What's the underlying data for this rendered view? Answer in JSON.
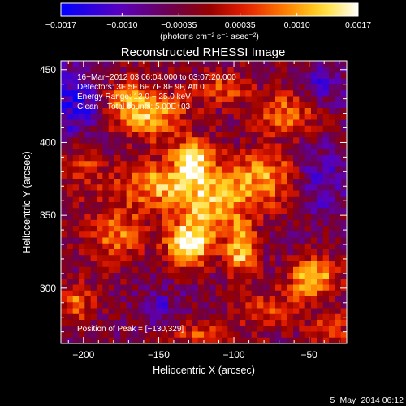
{
  "chart_data": {
    "type": "heatmap",
    "title": "Reconstructed RHESSI Image",
    "xlabel": "Heliocentric X (arcsec)",
    "ylabel": "Heliocentric Y (arcsec)",
    "xlim": [
      -215,
      -25
    ],
    "ylim": [
      262,
      456
    ],
    "x_ticks": [
      -200,
      -150,
      -100,
      -50
    ],
    "y_ticks": [
      300,
      350,
      400,
      450
    ],
    "x_tick_labels": [
      "−200",
      "−150",
      "−100",
      "−50"
    ],
    "y_tick_labels": [
      "300",
      "350",
      "400",
      "450"
    ],
    "grid": false,
    "colorbar": {
      "colormap": "thermal (blue-purple-red-orange-yellow-white)",
      "range": [
        -0.0017,
        0.0017
      ],
      "tick_values": [
        -0.0017,
        -0.001,
        -0.00035,
        0.00035,
        0.001,
        0.0017
      ],
      "tick_labels": [
        "−0.0017",
        "−0.0010",
        "−0.00035",
        "0.00035",
        "0.0010",
        "0.0017"
      ],
      "units": "(photons cm⁻² s⁻¹ asec⁻²)",
      "colors": [
        "#0000ff",
        "#6a00b0",
        "#8a0040",
        "#d00000",
        "#ff8000",
        "#ffe000",
        "#ffffff"
      ]
    },
    "info_lines": [
      "16−Mar−2012 03:06:04.000 to 03:07:20.000",
      "Detectors: 3F 5F 6F 7F 8F 9F, Att 0",
      "Energy Range: 12.0 − 25.0 keV",
      "Clean    Total counts: 5.00E+03"
    ],
    "peak_label": "Position of Peak = [−130,329]",
    "peak": {
      "x": -130,
      "y": 329
    },
    "background_level": -0.00035,
    "sources": [
      {
        "x": -130,
        "y": 330,
        "sx": 10,
        "sy": 10,
        "amp": 0.0021
      },
      {
        "x": -127,
        "y": 390,
        "sx": 10,
        "sy": 9,
        "amp": 0.0017
      },
      {
        "x": -95,
        "y": 325,
        "sx": 7,
        "sy": 12,
        "amp": 0.0016
      },
      {
        "x": -47,
        "y": 307,
        "sx": 11,
        "sy": 10,
        "amp": 0.0016
      },
      {
        "x": -147,
        "y": 371,
        "sx": 22,
        "sy": 10,
        "amp": 0.0014
      },
      {
        "x": -78,
        "y": 376,
        "sx": 20,
        "sy": 14,
        "amp": 0.0013
      },
      {
        "x": -178,
        "y": 338,
        "sx": 14,
        "sy": 14,
        "amp": 0.0011
      },
      {
        "x": -115,
        "y": 355,
        "sx": 18,
        "sy": 14,
        "amp": 0.0013
      },
      {
        "x": -172,
        "y": 428,
        "sx": 12,
        "sy": 12,
        "amp": 0.001
      },
      {
        "x": -153,
        "y": 418,
        "sx": 16,
        "sy": 12,
        "amp": 0.0012
      },
      {
        "x": -65,
        "y": 420,
        "sx": 14,
        "sy": 10,
        "amp": 0.0011
      },
      {
        "x": -205,
        "y": 290,
        "sx": 8,
        "sy": 10,
        "amp": 0.001
      },
      {
        "x": -122,
        "y": 268,
        "sx": 14,
        "sy": 6,
        "amp": 0.0009
      },
      {
        "x": -76,
        "y": 285,
        "sx": 14,
        "sy": 10,
        "amp": 0.0008
      },
      {
        "x": -108,
        "y": 437,
        "sx": 14,
        "sy": 9,
        "amp": 0.0008
      },
      {
        "x": -35,
        "y": 270,
        "sx": 10,
        "sy": 10,
        "amp": 0.0008
      },
      {
        "x": -200,
        "y": 385,
        "sx": 10,
        "sy": 14,
        "amp": 0.0007
      }
    ],
    "negative_regions": [
      {
        "x": -205,
        "y": 425,
        "sx": 14,
        "sy": 18,
        "amp": -0.001
      },
      {
        "x": -45,
        "y": 375,
        "sx": 14,
        "sy": 16,
        "amp": -0.0009
      },
      {
        "x": -150,
        "y": 285,
        "sx": 10,
        "sy": 10,
        "amp": -0.0006
      },
      {
        "x": -40,
        "y": 440,
        "sx": 10,
        "sy": 10,
        "amp": -0.0007
      }
    ]
  },
  "footer": {
    "date": "5−May−2014 06:12"
  }
}
